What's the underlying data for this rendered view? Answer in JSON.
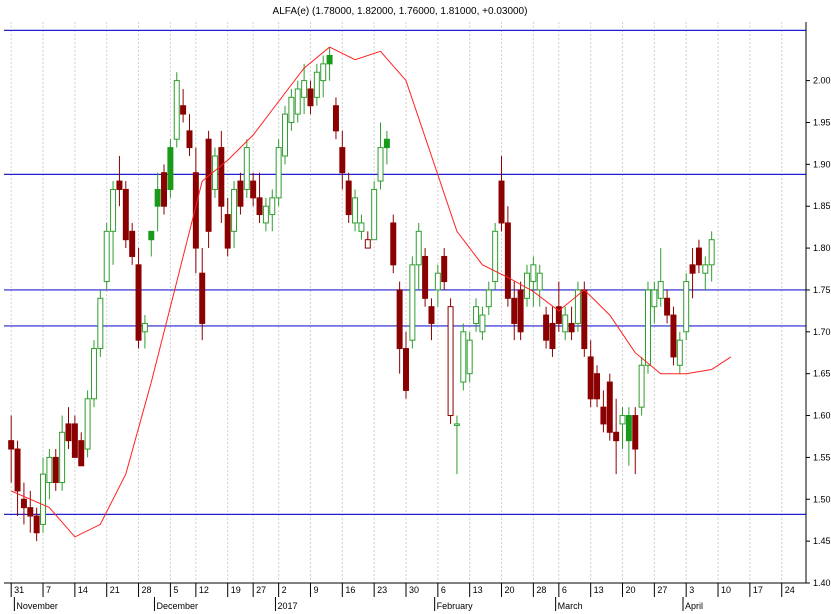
{
  "chart_data": {
    "type": "candlestick",
    "title": "ALFA(e) (1.78000, 1.82000, 1.76000, 1.81000, +0.03000)",
    "ylim": [
      1.4,
      2.07
    ],
    "y_ticks": [
      "2.00",
      "1.95",
      "1.90",
      "1.85",
      "1.80",
      "1.75",
      "1.70",
      "1.65",
      "1.60",
      "1.55",
      "1.50",
      "1.45",
      "1.40"
    ],
    "y_tick_values": [
      2.0,
      1.95,
      1.9,
      1.85,
      1.8,
      1.75,
      1.7,
      1.65,
      1.6,
      1.55,
      1.5,
      1.45,
      1.4
    ],
    "x_ticks": [
      {
        "label": "31",
        "i": 0
      },
      {
        "label": "7",
        "i": 5
      },
      {
        "label": "14",
        "i": 10
      },
      {
        "label": "21",
        "i": 15
      },
      {
        "label": "28",
        "i": 20
      },
      {
        "label": "5",
        "i": 25
      },
      {
        "label": "12",
        "i": 29
      },
      {
        "label": "19",
        "i": 34
      },
      {
        "label": "27",
        "i": 38
      },
      {
        "label": "2",
        "i": 42
      },
      {
        "label": "9",
        "i": 47
      },
      {
        "label": "16",
        "i": 52
      },
      {
        "label": "23",
        "i": 57
      },
      {
        "label": "30",
        "i": 62
      },
      {
        "label": "6",
        "i": 67
      },
      {
        "label": "13",
        "i": 72
      },
      {
        "label": "20",
        "i": 77
      },
      {
        "label": "28",
        "i": 82
      },
      {
        "label": "6",
        "i": 86
      },
      {
        "label": "13",
        "i": 91
      },
      {
        "label": "20",
        "i": 96
      },
      {
        "label": "27",
        "i": 101
      },
      {
        "label": "3",
        "i": 106
      },
      {
        "label": "10",
        "i": 111
      },
      {
        "label": "17",
        "i": 116
      },
      {
        "label": "24",
        "i": 121
      }
    ],
    "months": [
      {
        "label": "November",
        "i": 1
      },
      {
        "label": "December",
        "i": 23
      },
      {
        "label": "2017",
        "i": 42
      },
      {
        "label": "February",
        "i": 67
      },
      {
        "label": "March",
        "i": 86
      },
      {
        "label": "April",
        "i": 106
      }
    ],
    "horizontal_lines": [
      2.06,
      1.888,
      1.75,
      1.707,
      1.482
    ],
    "colors": {
      "up_edge": "#2e9e2e",
      "down_fill": "#8b0000",
      "up_solid": "#1a9a1a",
      "ma": "#ff2020",
      "hline": "#2020d0",
      "grid": "#d0d0d0"
    },
    "candles": [
      [
        1.57,
        1.6,
        1.52,
        1.56
      ],
      [
        1.56,
        1.57,
        1.48,
        1.51
      ],
      [
        1.5,
        1.52,
        1.47,
        1.49
      ],
      [
        1.49,
        1.51,
        1.46,
        1.48
      ],
      [
        1.48,
        1.49,
        1.45,
        1.46
      ],
      [
        1.47,
        1.55,
        1.46,
        1.53
      ],
      [
        1.52,
        1.56,
        1.5,
        1.55
      ],
      [
        1.55,
        1.56,
        1.51,
        1.52
      ],
      [
        1.52,
        1.6,
        1.51,
        1.58
      ],
      [
        1.59,
        1.61,
        1.56,
        1.57
      ],
      [
        1.59,
        1.6,
        1.55,
        1.55
      ],
      [
        1.57,
        1.58,
        1.54,
        1.54
      ],
      [
        1.56,
        1.63,
        1.55,
        1.62
      ],
      [
        1.62,
        1.69,
        1.61,
        1.68
      ],
      [
        1.68,
        1.75,
        1.67,
        1.74
      ],
      [
        1.76,
        1.83,
        1.75,
        1.82
      ],
      [
        1.82,
        1.88,
        1.78,
        1.87
      ],
      [
        1.88,
        1.91,
        1.85,
        1.87
      ],
      [
        1.87,
        1.88,
        1.8,
        1.81
      ],
      [
        1.82,
        1.83,
        1.78,
        1.79
      ],
      [
        1.78,
        1.8,
        1.68,
        1.69
      ],
      [
        1.7,
        1.72,
        1.68,
        1.71
      ],
      [
        1.81,
        1.82,
        1.79,
        1.82
      ],
      [
        1.85,
        1.89,
        1.82,
        1.87
      ],
      [
        1.89,
        1.9,
        1.84,
        1.85
      ],
      [
        1.87,
        1.93,
        1.86,
        1.92
      ],
      [
        1.93,
        2.01,
        1.92,
        2.0
      ],
      [
        1.97,
        1.99,
        1.95,
        1.96
      ],
      [
        1.94,
        1.96,
        1.91,
        1.92
      ],
      [
        1.89,
        1.92,
        1.77,
        1.8
      ],
      [
        1.77,
        1.8,
        1.69,
        1.71
      ],
      [
        1.93,
        1.94,
        1.8,
        1.82
      ],
      [
        1.87,
        1.92,
        1.86,
        1.91
      ],
      [
        1.92,
        1.94,
        1.83,
        1.85
      ],
      [
        1.84,
        1.86,
        1.79,
        1.8
      ],
      [
        1.82,
        1.88,
        1.8,
        1.87
      ],
      [
        1.88,
        1.89,
        1.84,
        1.85
      ],
      [
        1.87,
        1.93,
        1.86,
        1.92
      ],
      [
        1.88,
        1.89,
        1.85,
        1.86
      ],
      [
        1.86,
        1.89,
        1.83,
        1.84
      ],
      [
        1.83,
        1.86,
        1.82,
        1.85
      ],
      [
        1.84,
        1.87,
        1.82,
        1.86
      ],
      [
        1.86,
        1.93,
        1.85,
        1.92
      ],
      [
        1.91,
        1.97,
        1.9,
        1.96
      ],
      [
        1.95,
        1.99,
        1.94,
        1.98
      ],
      [
        1.96,
        2.0,
        1.95,
        1.99
      ],
      [
        1.98,
        2.02,
        1.96,
        2.0
      ],
      [
        1.99,
        2.0,
        1.96,
        1.97
      ],
      [
        1.98,
        2.02,
        1.97,
        2.01
      ],
      [
        2.0,
        2.03,
        1.98,
        2.02
      ],
      [
        2.02,
        2.04,
        2.0,
        2.03
      ],
      [
        1.97,
        1.98,
        1.93,
        1.94
      ],
      [
        1.92,
        1.94,
        1.87,
        1.89
      ],
      [
        1.88,
        1.89,
        1.83,
        1.84
      ],
      [
        1.83,
        1.87,
        1.82,
        1.86
      ],
      [
        1.82,
        1.84,
        1.81,
        1.83
      ],
      [
        1.81,
        1.82,
        1.8,
        1.8
      ],
      [
        1.81,
        1.88,
        1.81,
        1.87
      ],
      [
        1.88,
        1.95,
        1.87,
        1.92
      ],
      [
        1.92,
        1.94,
        1.9,
        1.93
      ],
      [
        1.83,
        1.84,
        1.77,
        1.78
      ],
      [
        1.75,
        1.76,
        1.65,
        1.68
      ],
      [
        1.68,
        1.7,
        1.62,
        1.63
      ],
      [
        1.69,
        1.79,
        1.68,
        1.78
      ],
      [
        1.78,
        1.83,
        1.75,
        1.82
      ],
      [
        1.79,
        1.8,
        1.73,
        1.74
      ],
      [
        1.73,
        1.74,
        1.69,
        1.71
      ],
      [
        1.75,
        1.78,
        1.73,
        1.77
      ],
      [
        1.79,
        1.8,
        1.75,
        1.76
      ],
      [
        1.73,
        1.74,
        1.59,
        1.6
      ],
      [
        1.59,
        1.6,
        1.53,
        1.59
      ],
      [
        1.64,
        1.71,
        1.63,
        1.7
      ],
      [
        1.65,
        1.7,
        1.64,
        1.69
      ],
      [
        1.71,
        1.74,
        1.7,
        1.73
      ],
      [
        1.7,
        1.73,
        1.69,
        1.72
      ],
      [
        1.73,
        1.76,
        1.72,
        1.75
      ],
      [
        1.76,
        1.83,
        1.75,
        1.82
      ],
      [
        1.88,
        1.91,
        1.82,
        1.83
      ],
      [
        1.83,
        1.85,
        1.73,
        1.74
      ],
      [
        1.74,
        1.76,
        1.69,
        1.71
      ],
      [
        1.75,
        1.76,
        1.69,
        1.7
      ],
      [
        1.74,
        1.78,
        1.73,
        1.77
      ],
      [
        1.76,
        1.79,
        1.73,
        1.78
      ],
      [
        1.75,
        1.78,
        1.73,
        1.77
      ],
      [
        1.72,
        1.73,
        1.68,
        1.69
      ],
      [
        1.71,
        1.73,
        1.67,
        1.68
      ],
      [
        1.73,
        1.76,
        1.7,
        1.71
      ],
      [
        1.7,
        1.73,
        1.69,
        1.72
      ],
      [
        1.71,
        1.73,
        1.69,
        1.7
      ],
      [
        1.71,
        1.76,
        1.7,
        1.75
      ],
      [
        1.75,
        1.76,
        1.67,
        1.68
      ],
      [
        1.67,
        1.69,
        1.61,
        1.62
      ],
      [
        1.65,
        1.66,
        1.61,
        1.62
      ],
      [
        1.61,
        1.63,
        1.58,
        1.59
      ],
      [
        1.64,
        1.65,
        1.57,
        1.58
      ],
      [
        1.58,
        1.62,
        1.53,
        1.57
      ],
      [
        1.59,
        1.61,
        1.56,
        1.6
      ],
      [
        1.57,
        1.61,
        1.54,
        1.6
      ],
      [
        1.6,
        1.61,
        1.53,
        1.56
      ],
      [
        1.61,
        1.67,
        1.6,
        1.66
      ],
      [
        1.66,
        1.76,
        1.65,
        1.75
      ],
      [
        1.73,
        1.76,
        1.71,
        1.75
      ],
      [
        1.74,
        1.8,
        1.73,
        1.76
      ],
      [
        1.74,
        1.75,
        1.71,
        1.72
      ],
      [
        1.72,
        1.73,
        1.66,
        1.67
      ],
      [
        1.66,
        1.7,
        1.65,
        1.69
      ],
      [
        1.7,
        1.77,
        1.69,
        1.76
      ],
      [
        1.78,
        1.8,
        1.74,
        1.77
      ],
      [
        1.8,
        1.81,
        1.77,
        1.78
      ],
      [
        1.77,
        1.79,
        1.75,
        1.78
      ],
      [
        1.78,
        1.82,
        1.76,
        1.81
      ]
    ],
    "up_solid_indices": [
      22,
      23,
      25,
      36,
      50,
      59,
      88,
      90,
      97
    ],
    "down_outline_indices": [
      56,
      69,
      99
    ],
    "ma_points": [
      [
        0,
        1.51
      ],
      [
        6,
        1.49
      ],
      [
        10,
        1.455
      ],
      [
        14,
        1.47
      ],
      [
        18,
        1.53
      ],
      [
        22,
        1.64
      ],
      [
        26,
        1.76
      ],
      [
        30,
        1.88
      ],
      [
        34,
        1.905
      ],
      [
        38,
        1.935
      ],
      [
        42,
        1.975
      ],
      [
        46,
        2.015
      ],
      [
        50,
        2.04
      ],
      [
        54,
        2.025
      ],
      [
        58,
        2.035
      ],
      [
        62,
        2.0
      ],
      [
        66,
        1.91
      ],
      [
        70,
        1.82
      ],
      [
        74,
        1.78
      ],
      [
        78,
        1.765
      ],
      [
        82,
        1.748
      ],
      [
        86,
        1.725
      ],
      [
        90,
        1.75
      ],
      [
        94,
        1.72
      ],
      [
        98,
        1.675
      ],
      [
        102,
        1.65
      ],
      [
        106,
        1.65
      ],
      [
        110,
        1.655
      ],
      [
        113,
        1.67
      ]
    ]
  }
}
